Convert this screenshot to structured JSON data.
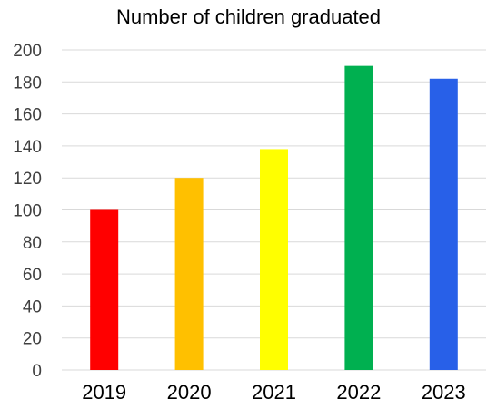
{
  "chart_data": {
    "type": "bar",
    "title": "Number of children graduated",
    "categories": [
      "2019",
      "2020",
      "2021",
      "2022",
      "2023"
    ],
    "values": [
      100,
      120,
      138,
      190,
      182
    ],
    "colors": [
      "#ff0000",
      "#ffc000",
      "#ffff00",
      "#00b050",
      "#2860e8"
    ],
    "ylim": [
      0,
      200
    ],
    "yticks": [
      0,
      20,
      40,
      60,
      80,
      100,
      120,
      140,
      160,
      180,
      200
    ],
    "grid": true,
    "legend": "none"
  }
}
